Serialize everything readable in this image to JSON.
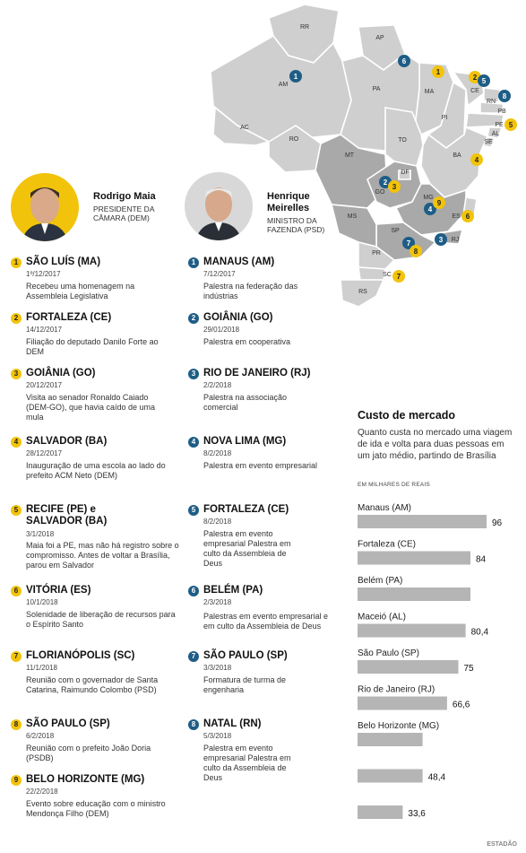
{
  "map": {
    "states": [
      "RR",
      "AP",
      "AM",
      "PA",
      "MA",
      "CE",
      "RN",
      "PB",
      "PE",
      "AL",
      "SE",
      "PI",
      "BA",
      "AC",
      "RO",
      "MT",
      "TO",
      "GO",
      "DF",
      "MG",
      "ES",
      "RJ",
      "SP",
      "MS",
      "PR",
      "SC",
      "RS"
    ],
    "markers": [
      {
        "n": "1",
        "color": "blue"
      },
      {
        "n": "6",
        "color": "blue"
      },
      {
        "n": "1",
        "color": "yellow"
      },
      {
        "n": "2",
        "color": "yellow"
      },
      {
        "n": "5",
        "color": "blue"
      },
      {
        "n": "8",
        "color": "blue"
      },
      {
        "n": "5",
        "color": "yellow"
      },
      {
        "n": "4",
        "color": "yellow"
      },
      {
        "n": "2",
        "color": "blue"
      },
      {
        "n": "3",
        "color": "yellow"
      },
      {
        "n": "4",
        "color": "blue"
      },
      {
        "n": "9",
        "color": "yellow"
      },
      {
        "n": "6",
        "color": "yellow"
      },
      {
        "n": "3",
        "color": "blue"
      },
      {
        "n": "7",
        "color": "blue"
      },
      {
        "n": "8",
        "color": "yellow"
      },
      {
        "n": "7",
        "color": "yellow"
      }
    ]
  },
  "maia": {
    "name": "Rodrigo Maia",
    "role": "PRESIDENTE DA CÂMARA (DEM)",
    "items": [
      {
        "n": "1",
        "city": "SÃO LUÍS (MA)",
        "date": "1º/12/2017",
        "desc": "Recebeu uma homenagem na Assembleia Legislativa"
      },
      {
        "n": "2",
        "city": "FORTALEZA (CE)",
        "date": "14/12/2017",
        "desc": "Filiação do deputado Danilo Forte ao DEM"
      },
      {
        "n": "3",
        "city": "GOIÂNIA (GO)",
        "date": "20/12/2017",
        "desc": "Visita ao senador Ronaldo Caiado (DEM-GO), que havia caído de uma mula"
      },
      {
        "n": "4",
        "city": "SALVADOR (BA)",
        "date": "28/12/2017",
        "desc": "Inauguração de uma escola ao lado do prefeito ACM Neto (DEM)"
      },
      {
        "n": "5",
        "city": "RECIFE (PE) e SALVADOR (BA)",
        "date": "3/1/2018",
        "desc": "Maia foi a PE, mas não há registro sobre o compromisso. Antes de voltar a Brasília, parou em Salvador"
      },
      {
        "n": "6",
        "city": "VITÓRIA (ES)",
        "date": "10/1/2018",
        "desc": "Solenidade de liberação de recursos para o Espírito Santo"
      },
      {
        "n": "7",
        "city": "FLORIANÓPOLIS (SC)",
        "date": "11/1/2018",
        "desc": "Reunião com o governador de Santa Catarina, Raimundo Colombo (PSD)"
      },
      {
        "n": "8",
        "city": "SÃO PAULO (SP)",
        "date": "6/2/2018",
        "desc": "Reunião com o prefeito João Doria (PSDB)"
      },
      {
        "n": "9",
        "city": "BELO HORIZONTE (MG)",
        "date": "22/2/2018",
        "desc": "Evento sobre educação com o ministro Mendonça Filho (DEM)"
      }
    ]
  },
  "meirelles": {
    "name": "Henrique Meirelles",
    "role": "MINISTRO DA FAZENDA (PSD)",
    "items": [
      {
        "n": "1",
        "city": "MANAUS (AM)",
        "date": "7/12/2017",
        "desc": "Palestra na federação das indústrias"
      },
      {
        "n": "2",
        "city": "GOIÂNIA (GO)",
        "date": "29/01/2018",
        "desc": "Palestra em cooperativa"
      },
      {
        "n": "3",
        "city": "RIO DE JANEIRO (RJ)",
        "date": "2/2/2018",
        "desc": "Palestra na associação comercial"
      },
      {
        "n": "4",
        "city": "NOVA LIMA (MG)",
        "date": "8/2/2018",
        "desc": "Palestra em evento empresarial"
      },
      {
        "n": "5",
        "city": "FORTALEZA (CE)",
        "date": "8/2/2018",
        "desc": "Palestra em evento empresarial Palestra em culto da Assembleia de Deus"
      },
      {
        "n": "6",
        "city": "BELÉM (PA)",
        "date": "2/3/2018",
        "desc": "Palestras em evento empresarial e em culto da Assembleia de Deus"
      },
      {
        "n": "7",
        "city": "SÃO PAULO (SP)",
        "date": "3/3/2018",
        "desc": "Formatura de turma de engenharia"
      },
      {
        "n": "8",
        "city": "NATAL (RN)",
        "date": "5/3/2018",
        "desc": "Palestra em evento empresarial Palestra em culto da Assembleia de Deus"
      }
    ]
  },
  "chart_data": {
    "type": "bar",
    "title": "Custo de mercado",
    "subtitle": "Quanto custa no mercado uma viagem de ida e volta para duas pessoas em um jato médio, partindo de Brasília",
    "unit": "EM MILHARES DE REAIS",
    "categories": [
      "Manaus (AM)",
      "Fortaleza (CE)",
      "Belém (PA)",
      "Maceió (AL)",
      "São Paulo (SP)",
      "Rio de Janeiro (RJ)",
      "Belo Horizonte (MG)",
      "",
      ""
    ],
    "values": [
      96,
      84,
      84,
      80.4,
      75,
      66.6,
      48.4,
      48.4,
      33.6
    ],
    "value_labels": [
      "96",
      "84",
      "",
      "80,4",
      "75",
      "66,6",
      "",
      "48,4",
      "33,6"
    ],
    "ylim": [
      0,
      100
    ]
  },
  "credit": "ESTADÃO"
}
